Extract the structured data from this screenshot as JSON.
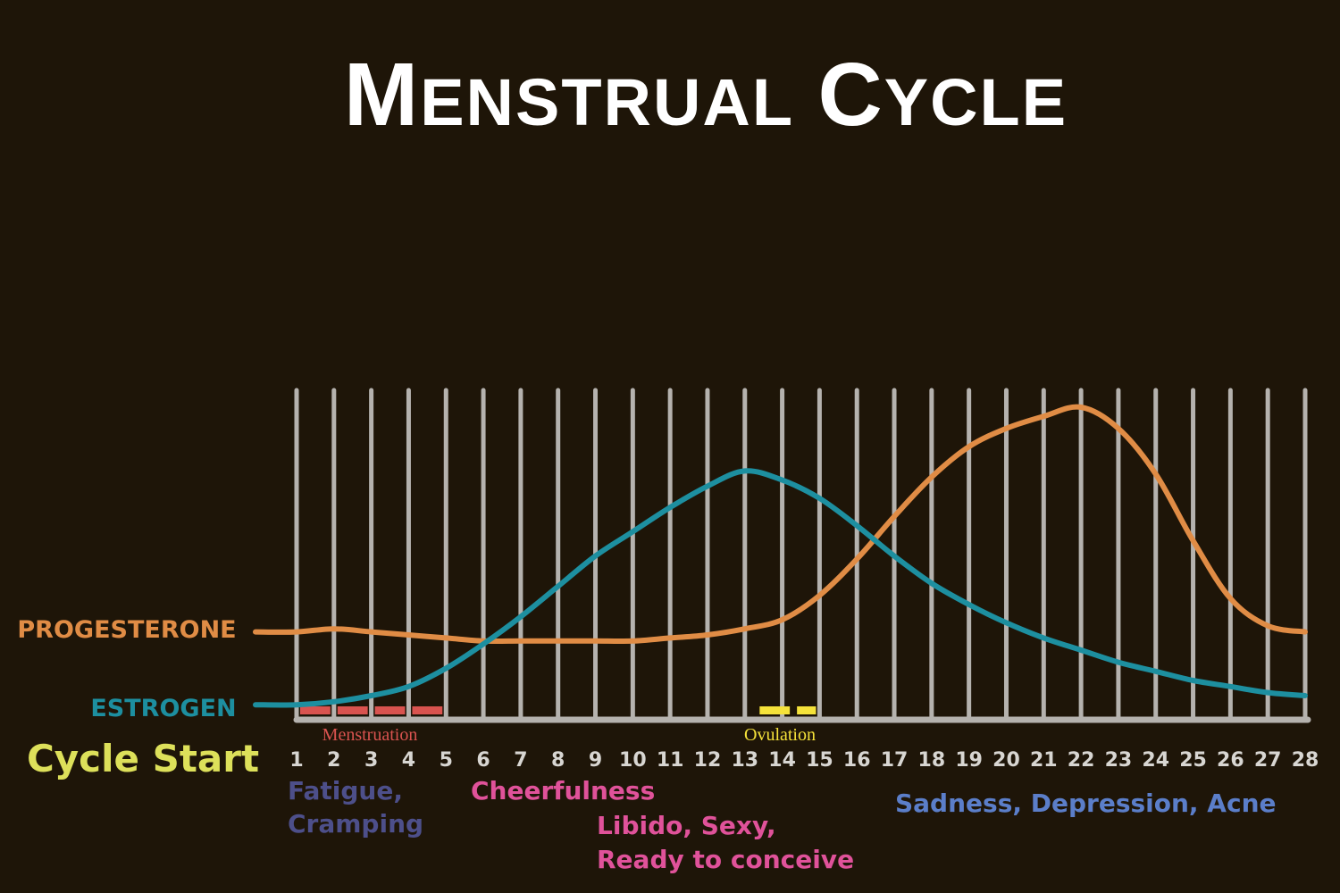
{
  "title": "Menstrual Cycle",
  "colors": {
    "background": "#1e1508",
    "title": "#ffffff",
    "gridline": "#b5b2ae",
    "progesterone": "#e08c45",
    "estrogen": "#1d8fa0",
    "cycle_start": "#dde05a",
    "menstruation_bar": "#d9534f",
    "menstruation_label": "#d9534f",
    "ovulation_bar": "#f5e23a",
    "ovulation_label": "#f5e23a",
    "tick_label": "#d8d6d2",
    "fatigue": "#4d4f8a",
    "cheerfulness": "#e0529a",
    "libido": "#e0529a",
    "sadness": "#5b7ec9"
  },
  "series_labels": {
    "progesterone": "PROGESTERONE",
    "estrogen": "ESTROGEN"
  },
  "cycle_start_label": "Cycle Start",
  "phase_labels": {
    "menstruation": "Menstruation",
    "ovulation": "Ovulation"
  },
  "symptoms": {
    "fatigue_line1": "Fatigue,",
    "fatigue_line2": "Cramping",
    "cheerfulness": "Cheerfulness",
    "libido_line1": "Libido, Sexy,",
    "libido_line2": "Ready to conceive",
    "sadness": "Sadness, Depression, Acne"
  },
  "chart_data": {
    "type": "line",
    "title": "Menstrual Cycle",
    "xlabel": "",
    "ylabel": "",
    "x": [
      1,
      2,
      3,
      4,
      5,
      6,
      7,
      8,
      9,
      10,
      11,
      12,
      13,
      14,
      15,
      16,
      17,
      18,
      19,
      20,
      21,
      22,
      23,
      24,
      25,
      26,
      27,
      28
    ],
    "xlim": [
      1,
      28
    ],
    "ylim": [
      0,
      100
    ],
    "grid": true,
    "series": [
      {
        "name": "PROGESTERONE",
        "values": [
          26,
          27,
          26,
          25,
          24,
          23,
          23,
          23,
          23,
          23,
          24,
          25,
          27,
          30,
          38,
          50,
          64,
          77,
          87,
          93,
          97,
          100,
          93,
          78,
          56,
          37,
          28,
          26
        ]
      },
      {
        "name": "ESTROGEN",
        "values": [
          2,
          3,
          5,
          8,
          14,
          22,
          31,
          41,
          51,
          59,
          67,
          74,
          79,
          76,
          70,
          61,
          51,
          42,
          35,
          29,
          24,
          20,
          16,
          13,
          10,
          8,
          6,
          5
        ]
      }
    ],
    "annotations": [
      {
        "label": "Menstruation",
        "from": 1,
        "to": 5
      },
      {
        "label": "Ovulation",
        "from": 13.3,
        "to": 15
      }
    ]
  }
}
